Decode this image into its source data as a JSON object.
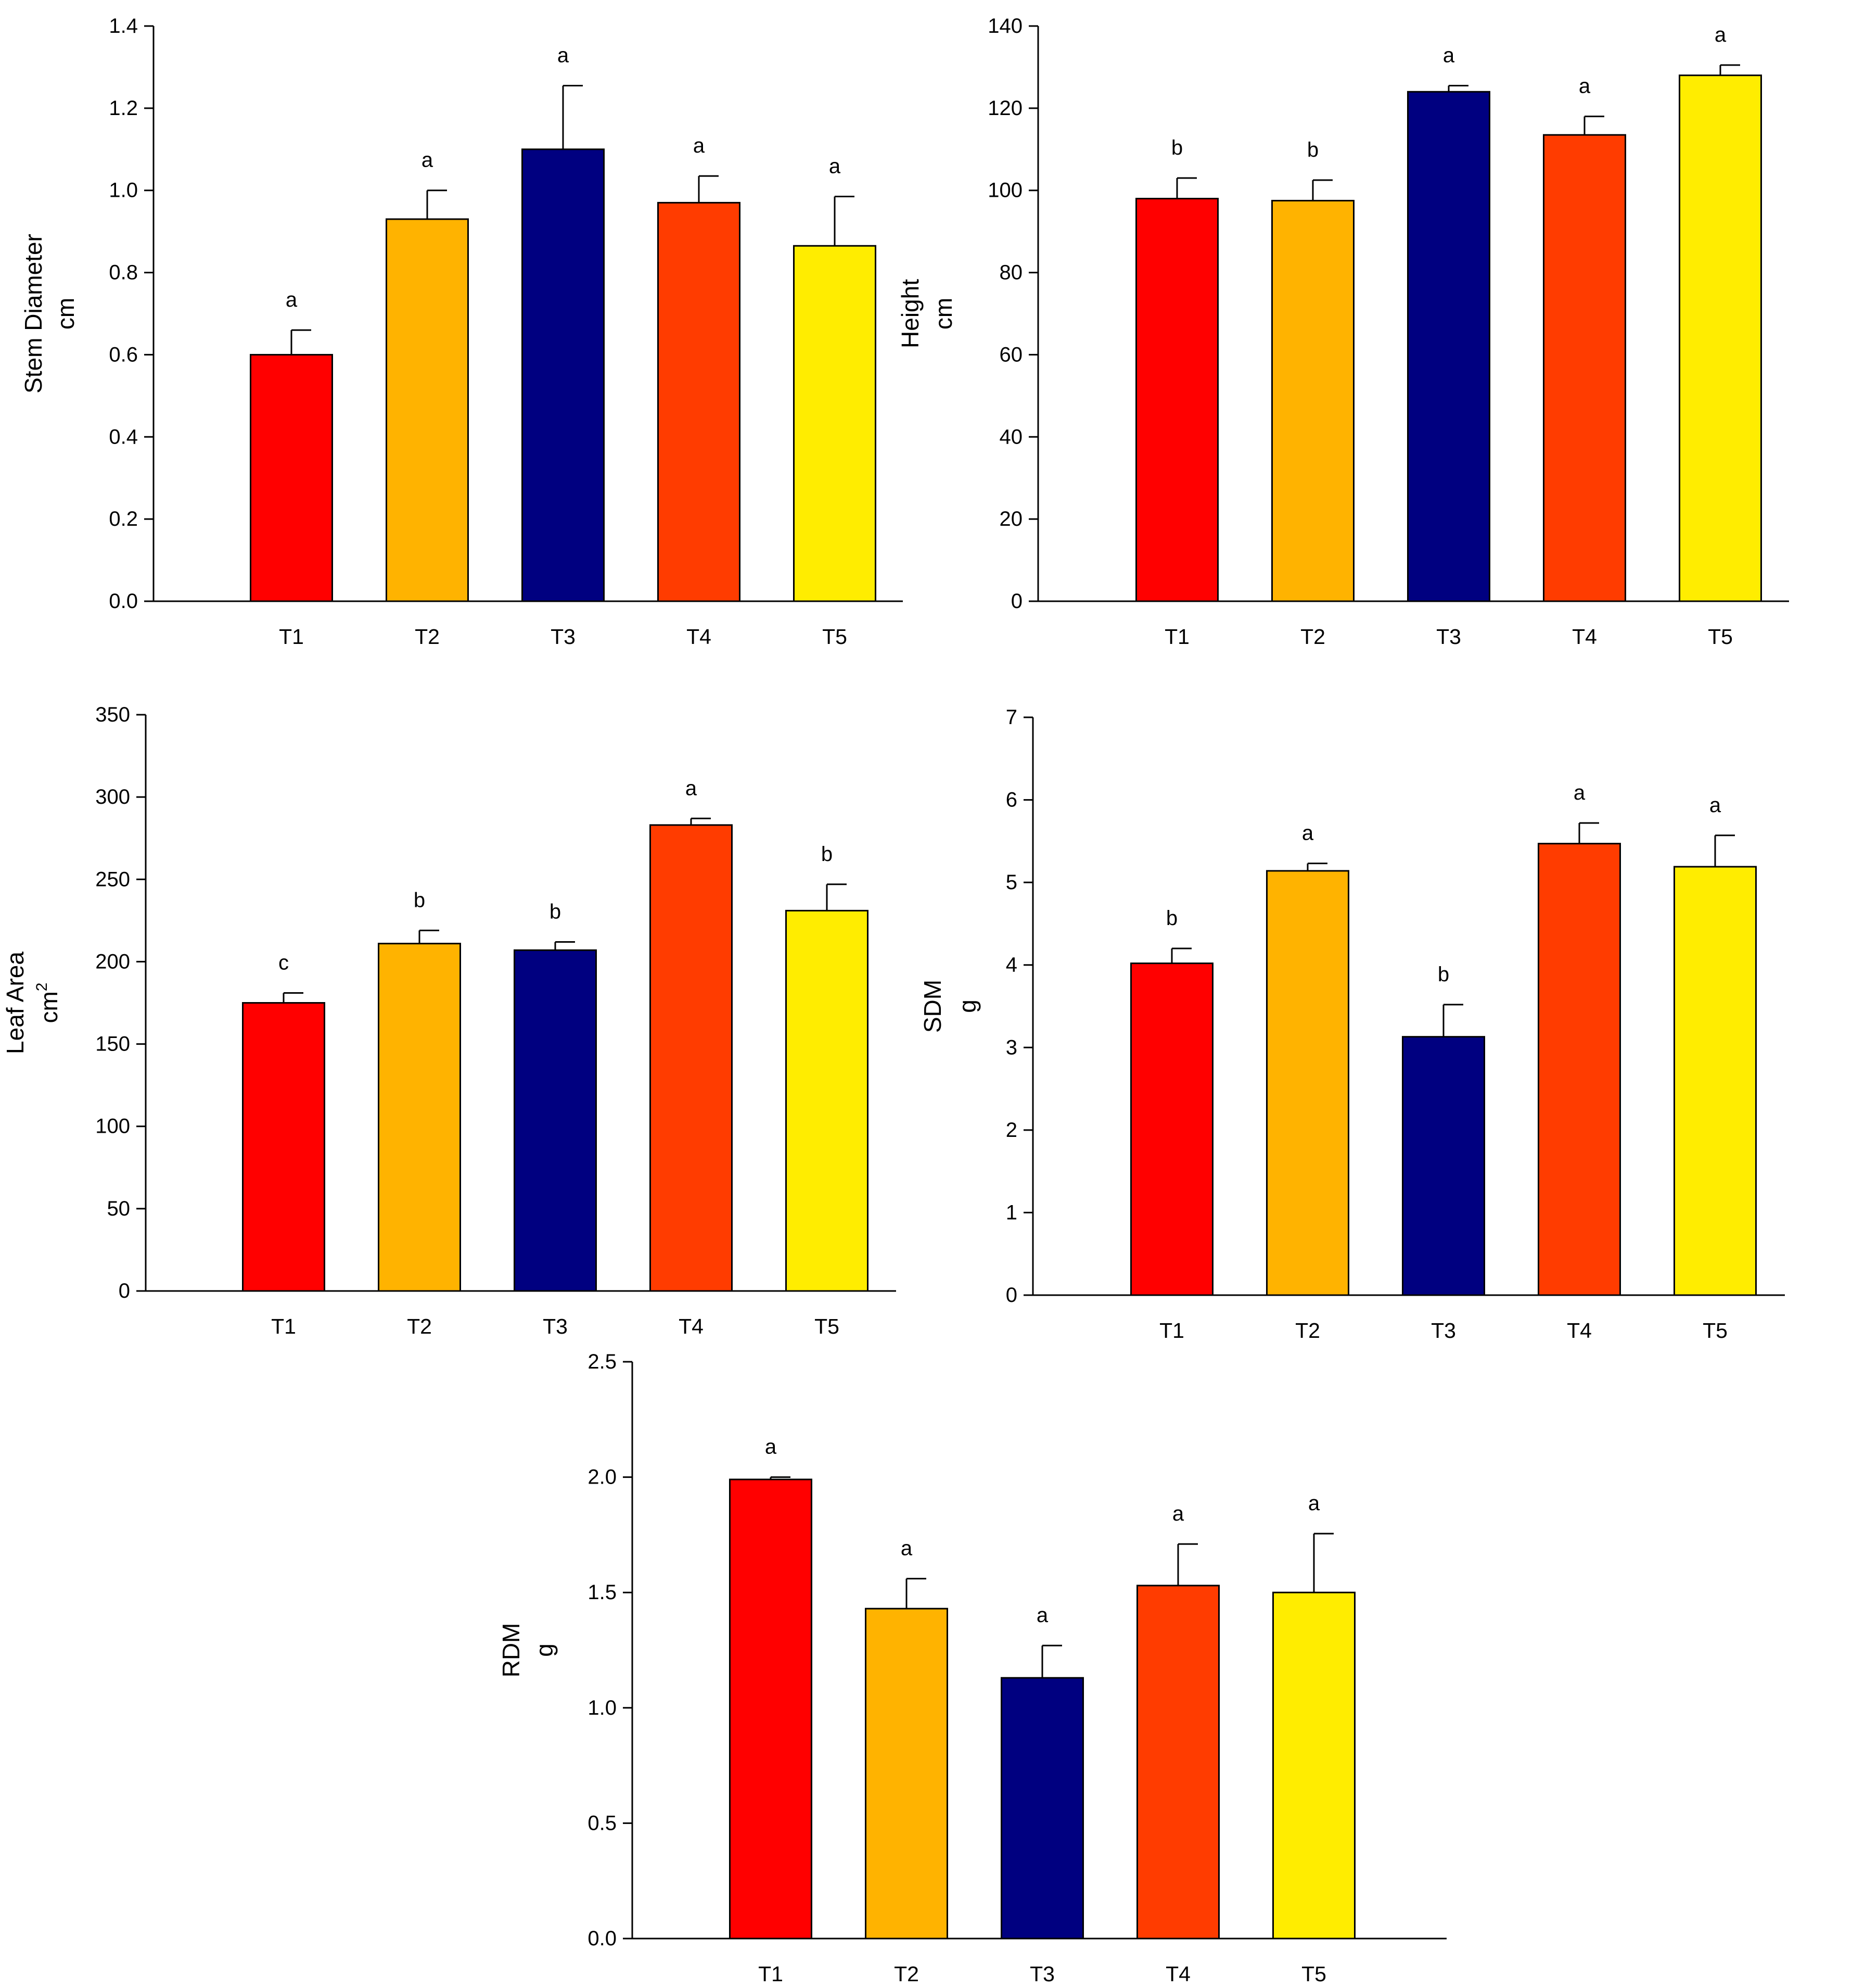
{
  "chart_data": [
    {
      "id": "stem-diameter",
      "type": "bar",
      "ylabel": "Stem Diameter",
      "yunit": "cm",
      "categories": [
        "T1",
        "T2",
        "T3",
        "T4",
        "T5"
      ],
      "values": [
        0.6,
        0.93,
        1.1,
        0.97,
        0.865
      ],
      "errors": [
        0.06,
        0.07,
        0.155,
        0.065,
        0.12
      ],
      "significance": [
        "a",
        "a",
        "a",
        "a",
        "a"
      ],
      "colors": [
        "#ff0000",
        "#ffb300",
        "#000080",
        "#ff3c00",
        "#ffed00"
      ],
      "ylim": [
        0,
        1.4
      ],
      "yticks": [
        "0.0",
        "0.2",
        "0.4",
        "0.6",
        "0.8",
        "1.0",
        "1.2",
        "1.4"
      ]
    },
    {
      "id": "height",
      "type": "bar",
      "ylabel": "Height",
      "yunit": "cm",
      "categories": [
        "T1",
        "T2",
        "T3",
        "T4",
        "T5"
      ],
      "values": [
        98,
        97.5,
        124,
        113.5,
        128
      ],
      "errors": [
        5,
        5,
        1.5,
        4.5,
        2.5
      ],
      "significance": [
        "b",
        "b",
        "a",
        "a",
        "a"
      ],
      "colors": [
        "#ff0000",
        "#ffb300",
        "#000080",
        "#ff3c00",
        "#ffed00"
      ],
      "ylim": [
        0,
        140
      ],
      "yticks": [
        "0",
        "20",
        "40",
        "60",
        "80",
        "100",
        "120",
        "140"
      ]
    },
    {
      "id": "leaf-area",
      "type": "bar",
      "ylabel": "Leaf Area",
      "yunit": "cm",
      "yunit_sup": "2",
      "categories": [
        "T1",
        "T2",
        "T3",
        "T4",
        "T5"
      ],
      "values": [
        175,
        211,
        207,
        283,
        231
      ],
      "errors": [
        6,
        8,
        5,
        4,
        16
      ],
      "significance": [
        "c",
        "b",
        "b",
        "a",
        "b"
      ],
      "colors": [
        "#ff0000",
        "#ffb300",
        "#000080",
        "#ff3c00",
        "#ffed00"
      ],
      "ylim": [
        0,
        350
      ],
      "yticks": [
        "0",
        "50",
        "100",
        "150",
        "200",
        "250",
        "300",
        "350"
      ]
    },
    {
      "id": "sdm",
      "type": "bar",
      "ylabel": "SDM",
      "yunit": "g",
      "categories": [
        "T1",
        "T2",
        "T3",
        "T4",
        "T5"
      ],
      "values": [
        4.02,
        5.14,
        3.13,
        5.47,
        5.19
      ],
      "errors": [
        0.18,
        0.09,
        0.39,
        0.25,
        0.38
      ],
      "significance": [
        "b",
        "a",
        "b",
        "a",
        "a"
      ],
      "colors": [
        "#ff0000",
        "#ffb300",
        "#000080",
        "#ff3c00",
        "#ffed00"
      ],
      "ylim": [
        0,
        7
      ],
      "yticks": [
        "0",
        "1",
        "2",
        "3",
        "4",
        "5",
        "6",
        "7"
      ]
    },
    {
      "id": "rdm",
      "type": "bar",
      "ylabel": "RDM",
      "yunit": "g",
      "categories": [
        "T1",
        "T2",
        "T3",
        "T4",
        "T5"
      ],
      "values": [
        1.99,
        1.43,
        1.13,
        1.53,
        1.5
      ],
      "errors": [
        0.01,
        0.13,
        0.14,
        0.18,
        0.255
      ],
      "significance": [
        "a",
        "a",
        "a",
        "a",
        "a"
      ],
      "colors": [
        "#ff0000",
        "#ffb300",
        "#000080",
        "#ff3c00",
        "#ffed00"
      ],
      "ylim": [
        0,
        2.5
      ],
      "yticks": [
        "0.0",
        "0.5",
        "1.0",
        "1.5",
        "2.0",
        "2.5"
      ]
    }
  ]
}
